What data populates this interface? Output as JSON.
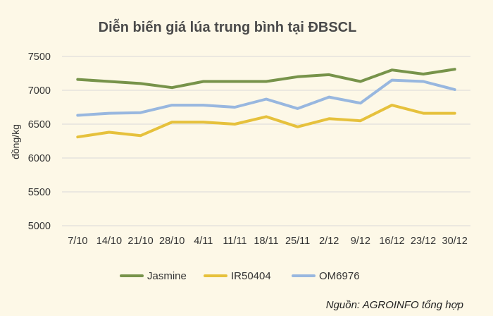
{
  "chart_data": {
    "type": "line",
    "title": "Diễn biến giá lúa trung bình tại ĐBSCL",
    "ylabel": "đồng/kg",
    "xlabel": "",
    "categories": [
      "7/10",
      "14/10",
      "21/10",
      "28/10",
      "4/11",
      "11/11",
      "18/11",
      "25/11",
      "2/12",
      "9/12",
      "16/12",
      "23/12",
      "30/12"
    ],
    "yticks": [
      "5000",
      "5500",
      "6000",
      "6500",
      "7000",
      "7500"
    ],
    "ylim": [
      5000,
      7500
    ],
    "grid": true,
    "legend_position": "bottom",
    "series": [
      {
        "name": "Jasmine",
        "color": "#77934a",
        "values": [
          7160,
          7130,
          7100,
          7040,
          7130,
          7130,
          7130,
          7200,
          7230,
          7130,
          7300,
          7240,
          7310
        ]
      },
      {
        "name": "IR50404",
        "color": "#e6c13c",
        "values": [
          6310,
          6380,
          6330,
          6530,
          6530,
          6500,
          6610,
          6460,
          6580,
          6550,
          6780,
          6660,
          6660
        ]
      },
      {
        "name": "OM6976",
        "color": "#98b7df",
        "values": [
          6630,
          6660,
          6670,
          6780,
          6780,
          6750,
          6870,
          6730,
          6900,
          6810,
          7150,
          7130,
          7010
        ]
      }
    ]
  },
  "source": "Nguồn: AGROINFO tổng hợp"
}
